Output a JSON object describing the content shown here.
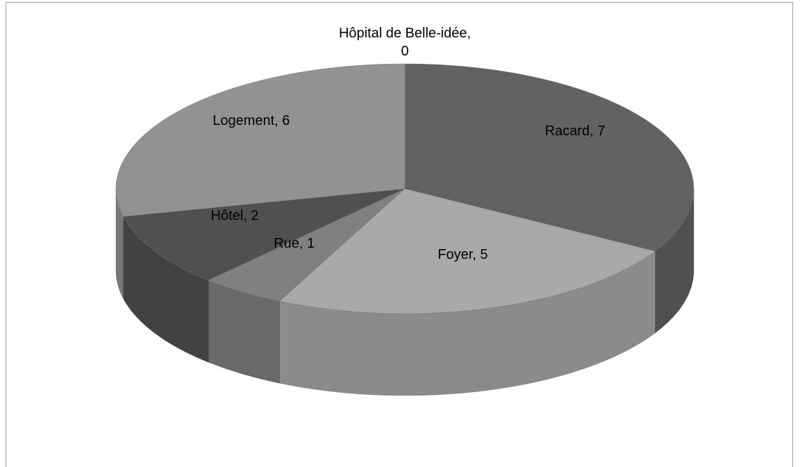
{
  "chart_data": {
    "type": "pie",
    "values": [
      0,
      7,
      5,
      1,
      2,
      6
    ],
    "value_labels": [
      "Hôpital de Belle-idée, 0",
      "Racard, 7",
      "Foyer, 5",
      "Rue, 1",
      "Hôtel, 2",
      "Logement, 6"
    ],
    "colors": [
      "#9a9a9a",
      "#626262",
      "#a9a9a9",
      "#808080",
      "#505050",
      "#929292"
    ]
  }
}
